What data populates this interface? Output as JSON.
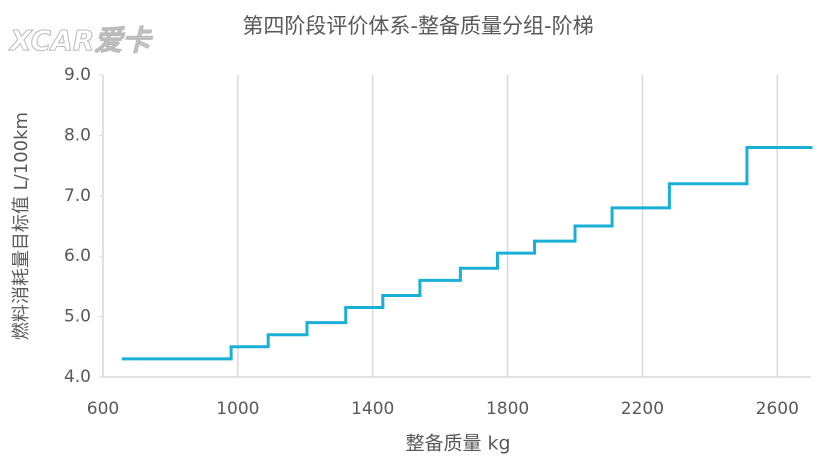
{
  "chart_data": {
    "type": "step",
    "title": "第四阶段评价体系-整备质量分组-阶梯",
    "watermark": "XCAR爱卡",
    "x_label": "整备质量 kg",
    "y_label": "燃料消耗量目标值 L/100km",
    "x": [
      660,
      980,
      1090,
      1205,
      1320,
      1430,
      1540,
      1660,
      1770,
      1880,
      2000,
      2110,
      2280,
      2510
    ],
    "values": [
      4.3,
      4.5,
      4.7,
      4.9,
      5.15,
      5.35,
      5.6,
      5.8,
      6.05,
      6.25,
      6.5,
      6.8,
      7.2,
      7.8
    ],
    "color": "#1aafd6",
    "xlim": [
      600,
      2700
    ],
    "xticks": [
      600,
      1000,
      1400,
      1800,
      2200,
      2600
    ],
    "ylim": [
      4,
      9
    ],
    "yticks": [
      {
        "value": 4,
        "label": "4.0"
      },
      {
        "value": 5,
        "label": "5.0"
      },
      {
        "value": 6,
        "label": "6.0"
      },
      {
        "value": 7,
        "label": "7.0"
      },
      {
        "value": 8,
        "label": "8.0"
      },
      {
        "value": 9,
        "label": "9.0"
      }
    ],
    "grid": true
  }
}
